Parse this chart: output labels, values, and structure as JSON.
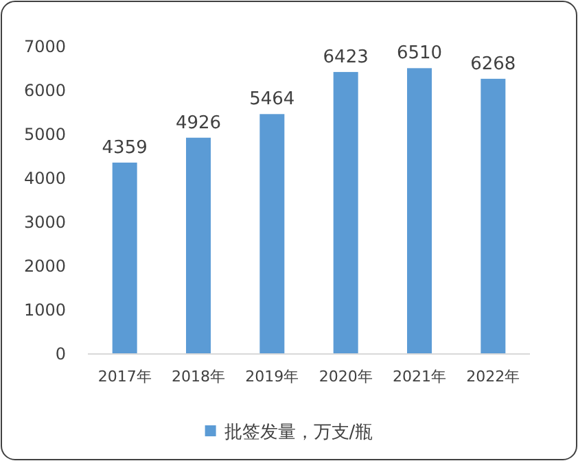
{
  "chart_data": {
    "type": "bar",
    "categories": [
      "2017年",
      "2018年",
      "2019年",
      "2020年",
      "2021年",
      "2022年"
    ],
    "series": [
      {
        "name": "批签发量，万支/瓶",
        "color": "#5b9bd5",
        "values": [
          4359,
          4926,
          5464,
          6423,
          6510,
          6268
        ]
      }
    ],
    "ylim": [
      0,
      7000
    ],
    "yticks": [
      0,
      1000,
      2000,
      3000,
      4000,
      5000,
      6000,
      7000
    ],
    "data_labels": true,
    "legend": "bottom",
    "grid": false
  }
}
